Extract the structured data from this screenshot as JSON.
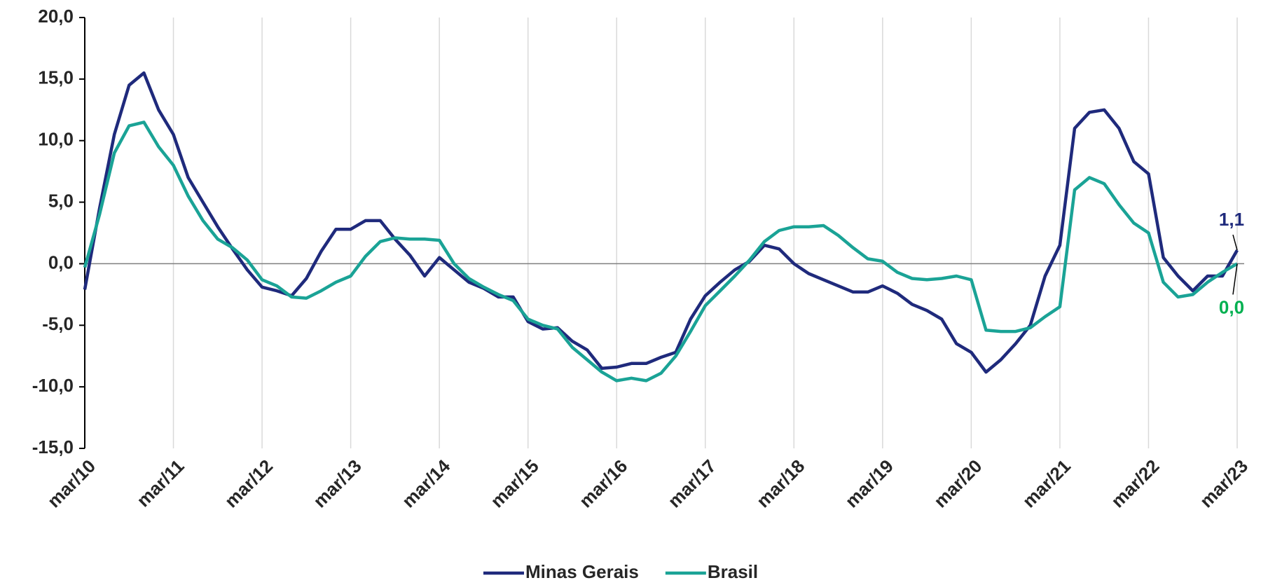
{
  "chart_data": {
    "type": "line",
    "categories": [
      "mar/10",
      null,
      null,
      null,
      null,
      null,
      "mar/11",
      null,
      null,
      null,
      null,
      null,
      "mar/12",
      null,
      null,
      null,
      null,
      null,
      "mar/13",
      null,
      null,
      null,
      null,
      null,
      "mar/14",
      null,
      null,
      null,
      null,
      null,
      "mar/15",
      null,
      null,
      null,
      null,
      null,
      "mar/16",
      null,
      null,
      null,
      null,
      null,
      "mar/17",
      null,
      null,
      null,
      null,
      null,
      "mar/18",
      null,
      null,
      null,
      null,
      null,
      "mar/19",
      null,
      null,
      null,
      null,
      null,
      "mar/20",
      null,
      null,
      null,
      null,
      null,
      "mar/21",
      null,
      null,
      null,
      null,
      null,
      "mar/22",
      null,
      null,
      null,
      null,
      null,
      "mar/23"
    ],
    "series": [
      {
        "name": "Minas Gerais",
        "color": "#1f2a7c",
        "label_color": "#1f2a7c",
        "label_position": "above",
        "values": [
          -2.1,
          4.5,
          10.5,
          14.5,
          15.5,
          12.5,
          10.5,
          7,
          5,
          3,
          1.2,
          -0.5,
          -1.9,
          -2.2,
          -2.6,
          -1.2,
          1.0,
          2.8,
          2.8,
          3.5,
          3.5,
          2.0,
          0.7,
          -1.0,
          0.5,
          -0.5,
          -1.5,
          -2.0,
          -2.7,
          -2.7,
          -4.7,
          -5.3,
          -5.2,
          -6.3,
          -7.0,
          -8.5,
          -8.4,
          -8.1,
          -8.1,
          -7.6,
          -7.2,
          -4.5,
          -2.6,
          -1.5,
          -0.5,
          0.2,
          1.5,
          1.2,
          0.0,
          -0.8,
          -1.3,
          -1.8,
          -2.3,
          -2.3,
          -1.8,
          -2.4,
          -3.3,
          -3.8,
          -4.5,
          -6.5,
          -7.2,
          -8.8,
          -7.8,
          -6.5,
          -5.0,
          -1.0,
          1.5,
          11.0,
          12.3,
          12.5,
          11.0,
          8.3,
          7.3,
          0.5,
          -1.0,
          -2.2,
          -1.0,
          -1.0,
          1.1
        ],
        "value_labels": [
          null,
          null,
          null,
          null,
          null,
          null,
          null,
          null,
          null,
          null,
          null,
          null,
          null,
          null,
          null,
          null,
          null,
          null,
          null,
          null,
          null,
          null,
          null,
          null,
          null,
          null,
          null,
          null,
          null,
          null,
          null,
          null,
          null,
          null,
          null,
          null,
          null,
          null,
          null,
          null,
          null,
          null,
          null,
          null,
          null,
          null,
          null,
          null,
          null,
          null,
          null,
          null,
          null,
          null,
          null,
          null,
          null,
          null,
          null,
          null,
          null,
          null,
          null,
          null,
          null,
          null,
          null,
          null,
          null,
          null,
          null,
          null,
          null,
          null,
          null,
          null,
          null,
          null,
          "1,1"
        ]
      },
      {
        "name": "Brasil",
        "color": "#1aa396",
        "label_color": "#00b050",
        "label_position": "below",
        "values": [
          -0.3,
          4,
          9,
          11.2,
          11.5,
          9.5,
          8,
          5.5,
          3.5,
          2,
          1.3,
          0.3,
          -1.3,
          -1.8,
          -2.7,
          -2.8,
          -2.2,
          -1.5,
          -1.0,
          0.6,
          1.8,
          2.1,
          2.0,
          2.0,
          1.9,
          0.0,
          -1.2,
          -1.9,
          -2.5,
          -3.0,
          -4.5,
          -5.0,
          -5.3,
          -6.8,
          -7.8,
          -8.8,
          -9.5,
          -9.3,
          -9.5,
          -8.9,
          -7.5,
          -5.5,
          -3.4,
          -2.2,
          -1.0,
          0.3,
          1.8,
          2.7,
          3.0,
          3.0,
          3.1,
          2.3,
          1.3,
          0.4,
          0.2,
          -0.7,
          -1.2,
          -1.3,
          -1.2,
          -1.0,
          -1.3,
          -5.4,
          -5.5,
          -5.5,
          -5.2,
          -4.3,
          -3.5,
          6.0,
          7.0,
          6.5,
          4.8,
          3.3,
          2.5,
          -1.5,
          -2.7,
          -2.5,
          -1.5,
          -0.7,
          0.0
        ],
        "value_labels": [
          null,
          null,
          null,
          null,
          null,
          null,
          null,
          null,
          null,
          null,
          null,
          null,
          null,
          null,
          null,
          null,
          null,
          null,
          null,
          null,
          null,
          null,
          null,
          null,
          null,
          null,
          null,
          null,
          null,
          null,
          null,
          null,
          null,
          null,
          null,
          null,
          null,
          null,
          null,
          null,
          null,
          null,
          null,
          null,
          null,
          null,
          null,
          null,
          null,
          null,
          null,
          null,
          null,
          null,
          null,
          null,
          null,
          null,
          null,
          null,
          null,
          null,
          null,
          null,
          null,
          null,
          null,
          null,
          null,
          null,
          null,
          null,
          null,
          null,
          null,
          null,
          null,
          null,
          "0,0"
        ]
      }
    ],
    "ylim": [
      -15,
      20
    ],
    "yticks": [
      {
        "value": -15,
        "label": "-15,0"
      },
      {
        "value": -10,
        "label": "-10,0"
      },
      {
        "value": -5,
        "label": "-5,0"
      },
      {
        "value": 0,
        "label": "0,0"
      },
      {
        "value": 5,
        "label": "5,0"
      },
      {
        "value": 10,
        "label": "10,0"
      },
      {
        "value": 15,
        "label": "15,0"
      },
      {
        "value": 20,
        "label": "20,0"
      }
    ],
    "grid": true,
    "legend": "bottom"
  }
}
